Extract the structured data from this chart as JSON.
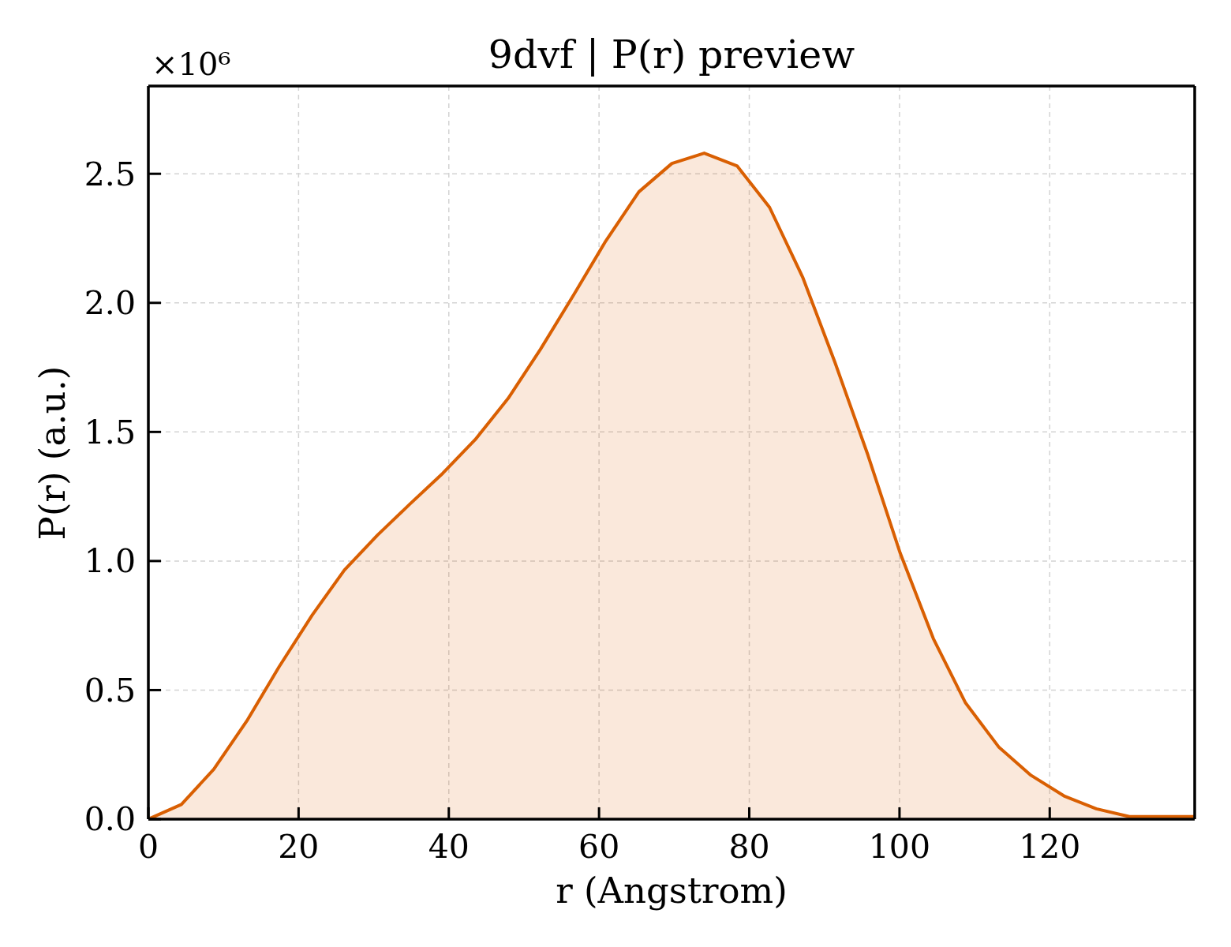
{
  "chart_data": {
    "type": "area",
    "title": "9dvf | P(r) preview",
    "xlabel": "r (Angstrom)",
    "ylabel": "P(r) (a.u.)",
    "annotations": [
      "×10⁶"
    ],
    "x": [
      0,
      4.4,
      8.7,
      13.1,
      17.4,
      21.8,
      26.1,
      30.5,
      34.8,
      39.2,
      43.5,
      47.9,
      52.2,
      56.6,
      60.9,
      65.3,
      69.7,
      74.0,
      78.4,
      82.7,
      87.1,
      91.4,
      95.8,
      100.1,
      104.5,
      108.8,
      113.2,
      117.5,
      121.9,
      126.2,
      130.6,
      135.0,
      139.3
    ],
    "series": [
      {
        "color": "#d95f02",
        "values": [
          0,
          0.057,
          0.193,
          0.38,
          0.59,
          0.79,
          0.965,
          1.1,
          1.22,
          1.34,
          1.47,
          1.63,
          1.82,
          2.03,
          2.24,
          2.43,
          2.54,
          2.58,
          2.53,
          2.37,
          2.1,
          1.77,
          1.41,
          1.03,
          0.7,
          0.45,
          0.28,
          0.17,
          0.09,
          0.04,
          0.01,
          0.01,
          0.01
        ]
      }
    ],
    "xlim": [
      0,
      139.3
    ],
    "ylim": [
      0,
      2.84
    ],
    "xticks": [
      0,
      20,
      40,
      60,
      80,
      100,
      120
    ],
    "yticks": [
      {
        "value": 0,
        "label": "0.0"
      },
      0.5,
      {
        "value": 1,
        "label": "1.0"
      },
      1.5,
      {
        "value": 2,
        "label": "2.0"
      },
      2.5
    ],
    "grid": true
  }
}
